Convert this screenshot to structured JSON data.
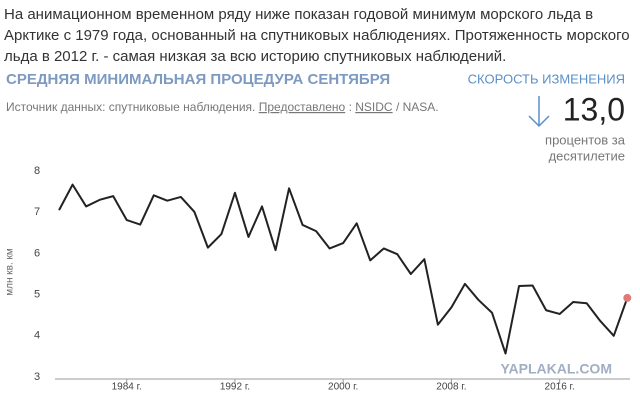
{
  "intro": [
    "На анимационном временном ряду ниже показан годовой минимум морского льда в",
    "Арктике с 1979 года, основанный на спутниковых наблюдениях. Протяженность морского",
    "льда в 2012 г. - самая низкая за всю историю спутниковых наблюдений."
  ],
  "header": {
    "title": "СРЕДНЯЯ МИНИМАЛЬНАЯ ПРОЦЕДУРА СЕНТЯБРЯ"
  },
  "source": {
    "prefix": "Источник данных: спутниковые наблюдения.",
    "credit": "Предоставлено",
    "sep": ":",
    "org": "NSIDC",
    "suffix": "/ NASA."
  },
  "rate": {
    "label": "СКОРОСТЬ ИЗМЕНЕНИЯ",
    "value": "13,0",
    "unit_line1": "процентов за",
    "unit_line2": "десятилетие"
  },
  "watermark": "YAPLAKAL.COM",
  "chart_data": {
    "type": "line",
    "y_label": "млн кв. км",
    "x": [
      1979,
      1980,
      1981,
      1982,
      1983,
      1984,
      1985,
      1986,
      1987,
      1988,
      1989,
      1990,
      1991,
      1992,
      1993,
      1994,
      1995,
      1996,
      1997,
      1998,
      1999,
      2000,
      2001,
      2002,
      2003,
      2004,
      2005,
      2006,
      2007,
      2008,
      2009,
      2010,
      2011,
      2012,
      2013,
      2014,
      2015,
      2016,
      2017,
      2018,
      2019,
      2020,
      2021
    ],
    "series": [
      {
        "color": "#222222",
        "last_point_color": "#e07b7b",
        "values": [
          7.05,
          7.67,
          7.14,
          7.3,
          7.39,
          6.81,
          6.7,
          7.41,
          7.28,
          7.37,
          7.01,
          6.14,
          6.47,
          7.47,
          6.4,
          7.14,
          6.08,
          7.58,
          6.69,
          6.54,
          6.12,
          6.25,
          6.73,
          5.83,
          6.12,
          5.98,
          5.5,
          5.86,
          4.27,
          4.69,
          5.26,
          4.87,
          4.56,
          3.57,
          5.21,
          5.22,
          4.62,
          4.53,
          4.82,
          4.79,
          4.36,
          4.0,
          4.92
        ]
      }
    ],
    "xlim": [
      1978.7,
      2021.2
    ],
    "xticks": [
      {
        "value": 1984,
        "label": "1984 г."
      },
      {
        "value": 1992,
        "label": "1992 г."
      },
      {
        "value": 2000,
        "label": "2000 г."
      },
      {
        "value": 2008,
        "label": "2008 г."
      },
      {
        "value": 2016,
        "label": "2016 г."
      }
    ],
    "ylim": [
      3,
      8
    ],
    "yticks": [
      3,
      4,
      5,
      6,
      7,
      8
    ]
  }
}
